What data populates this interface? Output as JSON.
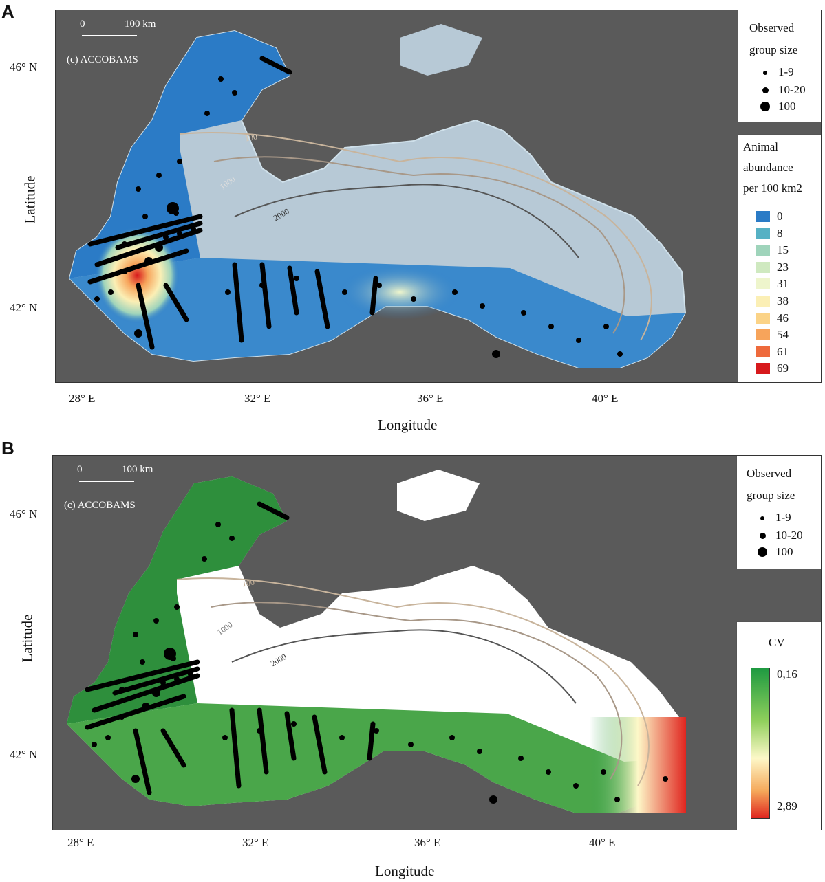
{
  "panels": {
    "a": {
      "letter": "A"
    },
    "b": {
      "letter": "B"
    }
  },
  "map": {
    "copyright": "(c) ACCOBAMS",
    "scale_left": "0",
    "scale_right": "100 km",
    "contours": [
      "100",
      "1000",
      "2000"
    ],
    "lon_ticks": [
      "28° E",
      "32° E",
      "36° E",
      "40° E"
    ],
    "lat_ticks": [
      "46° N",
      "42° N"
    ],
    "xlabel": "Longitude",
    "ylabel": "Latitude"
  },
  "group_legend": {
    "title_line1": "Observed",
    "title_line2": "group size",
    "items": [
      "1-9",
      "10-20",
      "100"
    ]
  },
  "abundance_legend": {
    "title_line1": "Animal",
    "title_line2": "abundance",
    "title_line3": "per 100 km2",
    "items": [
      {
        "label": "0",
        "color": "#2b7bc6"
      },
      {
        "label": "8",
        "color": "#56b1c4"
      },
      {
        "label": "15",
        "color": "#9fd4bb"
      },
      {
        "label": "23",
        "color": "#cfe9c0"
      },
      {
        "label": "31",
        "color": "#eef5cc"
      },
      {
        "label": "38",
        "color": "#fbefb5"
      },
      {
        "label": "46",
        "color": "#fbd387"
      },
      {
        "label": "54",
        "color": "#f7a45b"
      },
      {
        "label": "61",
        "color": "#ee6a3c"
      },
      {
        "label": "69",
        "color": "#d7191c"
      }
    ]
  },
  "cv_legend": {
    "title": "CV",
    "max_label": "0,16",
    "min_label": "2,89",
    "color_top": "#1e9a41",
    "color_mid": "#fdf8c8",
    "color_bottom": "#e0251f"
  },
  "colors": {
    "land": "#5a5a5a",
    "unsurveyed_a": "#b7c9d6",
    "unsurveyed_b": "#ffffff"
  }
}
